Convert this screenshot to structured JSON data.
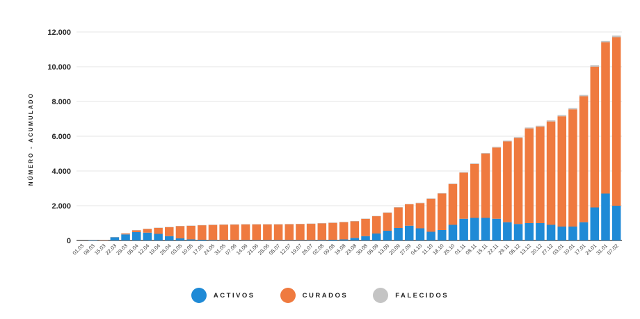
{
  "chart_data": {
    "type": "bar",
    "stacked": true,
    "ylabel": "NÚMERO - ACUMULADO",
    "ylim": [
      0,
      12000
    ],
    "yticks": [
      "0",
      "2.000",
      "4.000",
      "6.000",
      "8.000",
      "10.000",
      "12.000"
    ],
    "grid": true,
    "legend_position": "bottom",
    "categories": [
      "01.03",
      "08.03",
      "15.03",
      "22.03",
      "29.03",
      "05.04",
      "12.04",
      "19.04",
      "26.04",
      "03.05",
      "10.05",
      "17.05",
      "24.05",
      "31.05",
      "07.06",
      "14.06",
      "21.06",
      "28.06",
      "05.07",
      "12.07",
      "19.07",
      "26.07",
      "02.08",
      "09.08",
      "16.08",
      "23.08",
      "30.08",
      "06.09",
      "13.09",
      "20.09",
      "27.09",
      "04.10",
      "11.10",
      "18.10",
      "25.10",
      "01.11",
      "08.11",
      "15.11",
      "22.11",
      "29.11",
      "06.12",
      "13.12",
      "20.12",
      "27.12",
      "03.01",
      "10.01",
      "17.01",
      "24.01",
      "31.01",
      "07.02"
    ],
    "series": [
      {
        "name": "ACTIVOS",
        "color": "#1f8ad6",
        "values": [
          0,
          5,
          20,
          180,
          350,
          480,
          450,
          380,
          250,
          120,
          60,
          40,
          30,
          25,
          20,
          20,
          20,
          20,
          20,
          20,
          20,
          25,
          30,
          40,
          60,
          150,
          250,
          400,
          560,
          720,
          850,
          700,
          500,
          600,
          900,
          1250,
          1300,
          1300,
          1250,
          1050,
          950,
          1000,
          1000,
          900,
          800,
          800,
          1050,
          1900,
          2700,
          2000
        ]
      },
      {
        "name": "CURADOS",
        "color": "#ef7a3f",
        "values": [
          0,
          0,
          5,
          20,
          60,
          110,
          220,
          350,
          520,
          710,
          790,
          840,
          870,
          890,
          900,
          910,
          910,
          910,
          910,
          920,
          930,
          940,
          960,
          980,
          1000,
          960,
          1000,
          1000,
          1040,
          1180,
          1230,
          1450,
          1900,
          2100,
          2350,
          2650,
          3100,
          3700,
          4100,
          4650,
          4950,
          5450,
          5550,
          5950,
          6350,
          6750,
          7250,
          8100,
          8700,
          9700
        ]
      },
      {
        "name": "FALECIDOS",
        "color": "#c4c4c4",
        "values": [
          0,
          0,
          0,
          2,
          4,
          6,
          8,
          10,
          10,
          10,
          10,
          10,
          10,
          10,
          10,
          10,
          10,
          10,
          10,
          10,
          10,
          10,
          10,
          10,
          10,
          10,
          12,
          14,
          16,
          18,
          20,
          22,
          24,
          26,
          28,
          30,
          34,
          38,
          42,
          46,
          50,
          54,
          58,
          62,
          66,
          70,
          74,
          80,
          86,
          90
        ]
      }
    ]
  }
}
